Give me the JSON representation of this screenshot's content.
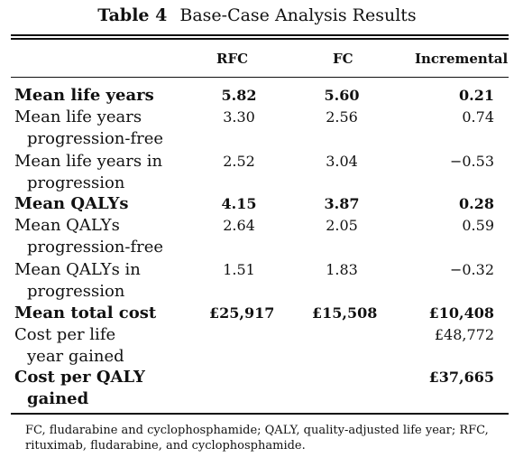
{
  "caption": {
    "number": "Table 4",
    "title": "Base-Case Analysis Results"
  },
  "columns": {
    "rfc": "RFC",
    "fc": "FC",
    "incremental": "Incremental"
  },
  "rows": [
    {
      "line1": "Mean life years",
      "line2": "",
      "rfc": "5.82",
      "fc": "5.60",
      "incremental": "0.21"
    },
    {
      "line1": "Mean life years",
      "line2": "progression-free",
      "rfc": "3.30",
      "fc": "2.56",
      "incremental": "0.74"
    },
    {
      "line1": "Mean life years in",
      "line2": "progression",
      "rfc": "2.52",
      "fc": "3.04",
      "incremental": "−0.53"
    },
    {
      "line1": "Mean QALYs",
      "line2": "",
      "rfc": "4.15",
      "fc": "3.87",
      "incremental": "0.28"
    },
    {
      "line1": "Mean QALYs",
      "line2": "progression-free",
      "rfc": "2.64",
      "fc": "2.05",
      "incremental": "0.59"
    },
    {
      "line1": "Mean QALYs in",
      "line2": "progression",
      "rfc": "1.51",
      "fc": "1.83",
      "incremental": "−0.32"
    },
    {
      "line1": "Mean total cost",
      "line2": "",
      "rfc": "£25,917",
      "fc": "£15,508",
      "incremental": "£10,408"
    },
    {
      "line1": "Cost per life",
      "line2": "year gained",
      "rfc": "",
      "fc": "",
      "incremental": "£48,772"
    },
    {
      "line1": "Cost per QALY",
      "line2": "gained",
      "rfc": "",
      "fc": "",
      "incremental": "£37,665"
    }
  ],
  "footnote": "FC, fludarabine and cyclophosphamide; QALY, quality-adjusted life year; RFC, rituximab, fludarabine, and cyclophosphamide."
}
